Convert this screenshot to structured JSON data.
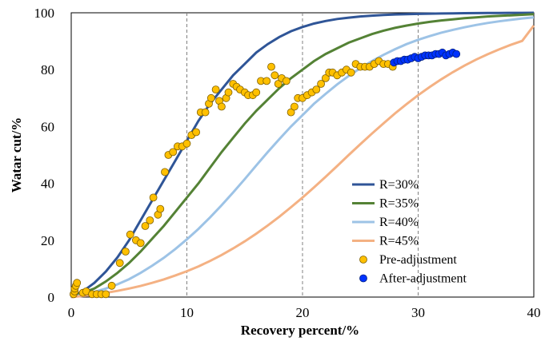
{
  "chart_data": {
    "type": "scatter",
    "title": "",
    "xlabel": "Recovery  percent/%",
    "ylabel": "Watar  cut/%",
    "xlim": [
      0,
      40
    ],
    "ylim": [
      0,
      100
    ],
    "x_ticks": [
      "0",
      "10",
      "20",
      "30",
      "40"
    ],
    "y_ticks": [
      "0",
      "20",
      "40",
      "60",
      "80",
      "100"
    ],
    "grid": "vertical dashed",
    "legend_placement": "bottom-right",
    "lines": [
      {
        "name": "R=30%",
        "color": "#2f5597",
        "x": [
          0,
          1,
          2,
          3,
          4,
          5,
          6,
          7,
          8,
          9,
          10,
          11,
          12,
          13,
          14,
          15,
          16,
          17,
          18,
          19,
          20,
          21,
          22,
          23,
          24,
          25,
          26,
          27,
          28,
          29,
          30,
          31,
          32,
          33,
          34,
          35,
          36,
          37,
          38,
          39,
          40
        ],
        "y": [
          0,
          2,
          5,
          9,
          14,
          20,
          27,
          34,
          41,
          48,
          55,
          62,
          68,
          73,
          78,
          82,
          86,
          89,
          91.5,
          93.5,
          95,
          96.2,
          97.1,
          97.8,
          98.3,
          98.7,
          99,
          99.2,
          99.4,
          99.5,
          99.6,
          99.7,
          99.75,
          99.8,
          99.85,
          99.9,
          99.92,
          99.94,
          99.96,
          99.98,
          100
        ]
      },
      {
        "name": "R=35%",
        "color": "#548235",
        "x": [
          0,
          1,
          2,
          3,
          4,
          5,
          6,
          7,
          8,
          9,
          10,
          11,
          12,
          13,
          14,
          15,
          16,
          17,
          18,
          19,
          20,
          21,
          22,
          23,
          24,
          25,
          26,
          27,
          28,
          29,
          30,
          31,
          32,
          33,
          34,
          35,
          36,
          37,
          38,
          39,
          40
        ],
        "y": [
          0,
          1.5,
          3,
          5.5,
          8.5,
          12,
          16,
          20.5,
          25,
          30,
          35,
          40,
          45.5,
          51,
          56,
          61,
          65.5,
          69.5,
          73.5,
          77,
          80,
          83,
          85.5,
          87.5,
          89.5,
          91,
          92.5,
          93.7,
          94.7,
          95.5,
          96.2,
          96.8,
          97.3,
          97.7,
          98.1,
          98.4,
          98.7,
          98.9,
          99.1,
          99.3,
          99.5
        ]
      },
      {
        "name": "R=40%",
        "color": "#9dc3e6",
        "x": [
          0,
          1,
          2,
          3,
          4,
          5,
          6,
          7,
          8,
          9,
          10,
          11,
          12,
          13,
          14,
          15,
          16,
          17,
          18,
          19,
          20,
          21,
          22,
          23,
          24,
          25,
          26,
          27,
          28,
          29,
          30,
          31,
          32,
          33,
          34,
          35,
          36,
          37,
          38,
          39,
          40
        ],
        "y": [
          0,
          0.8,
          1.8,
          3,
          4.5,
          6.3,
          8.5,
          11,
          13.8,
          16.9,
          20.3,
          24,
          28,
          32.3,
          36.8,
          41.5,
          46.3,
          51,
          55.6,
          60,
          64,
          68,
          71.5,
          74.8,
          77.8,
          80.5,
          83,
          85.2,
          87.2,
          89,
          90.5,
          91.8,
          93,
          94,
          94.9,
          95.7,
          96.4,
          97,
          97.5,
          98,
          98.4
        ]
      },
      {
        "name": "R=45%",
        "color": "#f4b183",
        "x": [
          0,
          1,
          2,
          3,
          4,
          5,
          6,
          7,
          8,
          9,
          10,
          11,
          12,
          13,
          14,
          15,
          16,
          17,
          18,
          19,
          20,
          21,
          22,
          23,
          24,
          25,
          26,
          27,
          28,
          29,
          30,
          31,
          32,
          33,
          34,
          35,
          36,
          37,
          38,
          39,
          40
        ],
        "y": [
          0,
          0.4,
          0.9,
          1.5,
          2.2,
          3,
          3.9,
          5,
          6.2,
          7.6,
          9.1,
          10.8,
          12.7,
          14.8,
          17.1,
          19.6,
          22.3,
          25.2,
          28.3,
          31.6,
          35,
          38.6,
          42.3,
          46.1,
          50,
          53.8,
          57.5,
          61.1,
          64.6,
          67.9,
          71,
          73.9,
          76.6,
          79.1,
          81.4,
          83.5,
          85.4,
          87.1,
          88.7,
          90.1,
          95.5
        ]
      }
    ],
    "series": [
      {
        "name": "Pre-adjustment",
        "color": "#ffc000",
        "x": [
          0.2,
          0.3,
          0.3,
          0.4,
          0.5,
          1.0,
          1.3,
          1.8,
          2.2,
          2.6,
          3.0,
          3.5,
          4.2,
          4.7,
          5.1,
          5.6,
          6.0,
          6.4,
          6.8,
          7.1,
          7.5,
          7.7,
          8.1,
          8.4,
          8.8,
          9.2,
          9.6,
          10.0,
          10.4,
          10.8,
          11.2,
          11.6,
          11.9,
          12.1,
          12.5,
          12.8,
          13.0,
          13.4,
          13.6,
          14.0,
          14.3,
          14.6,
          15.0,
          15.3,
          15.7,
          16.0,
          16.4,
          16.9,
          17.3,
          17.6,
          17.9,
          18.2,
          18.6,
          19.0,
          19.3,
          19.6,
          20.0,
          20.4,
          20.8,
          21.2,
          21.6,
          22.0,
          22.3,
          22.6,
          23.0,
          23.4,
          23.8,
          24.2,
          24.6,
          25.0,
          25.4,
          25.8,
          26.2,
          26.6,
          27.0,
          27.4,
          27.8
        ],
        "y": [
          1,
          2,
          3,
          4,
          5,
          1.5,
          2,
          1,
          1,
          1,
          1,
          4,
          12,
          16,
          22,
          20,
          19,
          25,
          27,
          35,
          29,
          31,
          44,
          50,
          51,
          53,
          53,
          54,
          57,
          58,
          65,
          65,
          68,
          70,
          73,
          69,
          67,
          70,
          72,
          75,
          74,
          73,
          72,
          71,
          71,
          72,
          76,
          76,
          81,
          78,
          75,
          77,
          76,
          65,
          67,
          70,
          70,
          71,
          72,
          73,
          75,
          77,
          79,
          79,
          78,
          79,
          80,
          79,
          82,
          81,
          81,
          81,
          82,
          83,
          82,
          82,
          81
        ]
      },
      {
        "name": "After-adjustment",
        "color": "#0033ff",
        "x": [
          27.9,
          28.2,
          28.5,
          28.8,
          29.1,
          29.4,
          29.7,
          30.0,
          30.3,
          30.6,
          30.9,
          31.2,
          31.5,
          31.8,
          32.1,
          32.4,
          32.7,
          33.0,
          33.3
        ],
        "y": [
          82.5,
          83,
          83,
          83.5,
          83.5,
          84,
          84.5,
          84,
          84.5,
          85,
          85,
          85,
          85.5,
          85.5,
          86,
          85,
          85.5,
          86,
          85.5
        ]
      }
    ]
  }
}
